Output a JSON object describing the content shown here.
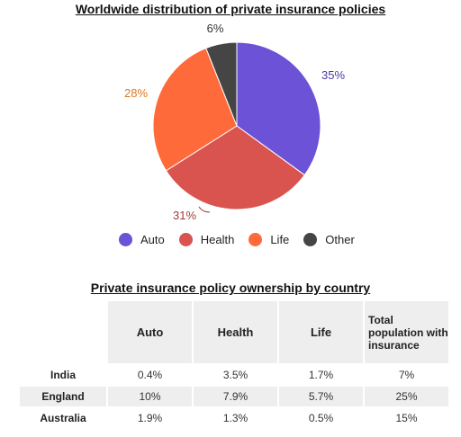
{
  "chart_data": [
    {
      "type": "pie",
      "title": "Worldwide distribution of private insurance policies",
      "categories": [
        "Auto",
        "Health",
        "Life",
        "Other"
      ],
      "values": [
        35,
        31,
        28,
        6
      ],
      "labels": [
        "35%",
        "31%",
        "28%",
        "6%"
      ],
      "colors": [
        "#6b52d6",
        "#d9534f",
        "#ff6a3a",
        "#454545"
      ],
      "label_colors": [
        "#4a3aa8",
        "#a33a3a",
        "#e07a1e",
        "#333333"
      ],
      "legend_placement": "bottom"
    },
    {
      "type": "table",
      "title": "Private insurance policy ownership by country",
      "columns": [
        "Auto",
        "Health",
        "Life",
        "Total population with insurance"
      ],
      "rows": [
        {
          "label": "India",
          "values": [
            "0.4%",
            "3.5%",
            "1.7%",
            "7%"
          ]
        },
        {
          "label": "England",
          "values": [
            "10%",
            "7.9%",
            "5.7%",
            "25%"
          ]
        },
        {
          "label": "Australia",
          "values": [
            "1.9%",
            "1.3%",
            "0.5%",
            "15%"
          ]
        }
      ]
    }
  ]
}
